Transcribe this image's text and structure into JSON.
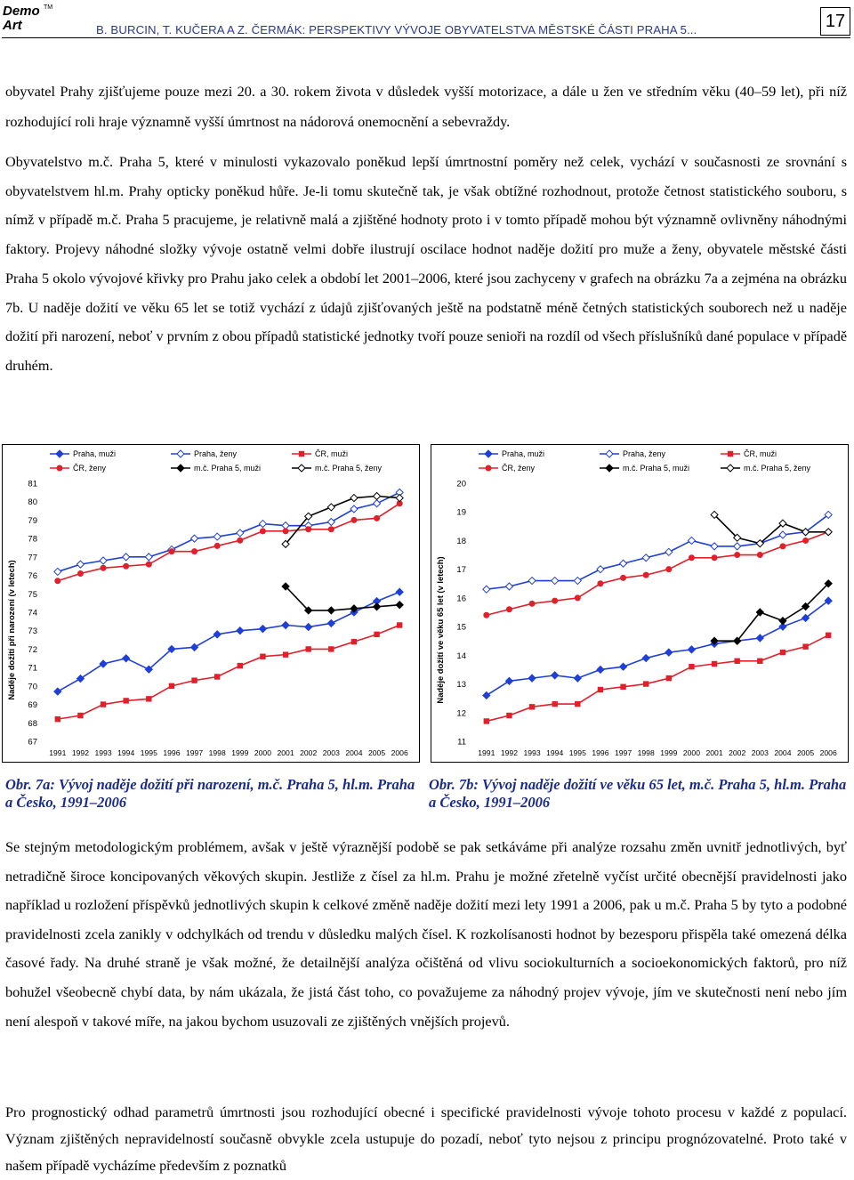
{
  "logo": {
    "text": "Demo Art",
    "mark": "TM"
  },
  "header": {
    "running_title": "B. BURCIN, T. KUČERA A Z. ČERMÁK: PERSPEKTIVY VÝVOJE OBYVATELSTVA MĚSTSKÉ ČÁSTI PRAHA 5...",
    "page_number": "17"
  },
  "body": {
    "para1": "obyvatel Prahy zjišťujeme pouze mezi 20. a 30. rokem života v důsledek vyšší motorizace, a dále u žen ve středním věku (40–59 let), při níž rozhodující roli hraje významně vyšší úmrtnost na nádorová onemocnění a sebevraždy.",
    "para2": "Obyvatelstvo m.č. Praha 5, které v minulosti vykazovalo poněkud lepší úmrtnostní poměry než celek, vychází v současnosti ze srovnání s obyvatelstvem hl.m. Prahy opticky poněkud hůře. Je-li tomu skutečně tak, je však obtížné rozhodnout, protože četnost statistického souboru, s nímž v případě m.č. Praha 5 pracujeme, je relativně malá a zjištěné hodnoty proto i v tomto případě mohou být významně ovlivněny náhodnými faktory. Projevy náhodné složky vývoje ostatně velmi dobře ilustrují oscilace hodnot naděje dožití pro muže a ženy, obyvatele městské části Praha 5 okolo vývojové křivky pro Prahu jako celek a období let 2001–2006, které jsou zachyceny v grafech na obrázku 7a a zejména na obrázku 7b. U naděje dožití ve věku 65 let se totiž vychází z údajů zjišťovaných ještě na podstatně méně četných statistických souborech než u naděje dožití při narození, neboť v prvním z obou případů statistické jednotky tvoří pouze senioři na rozdíl od všech příslušníků dané populace v případě druhém.",
    "para3": "Se stejným metodologickým problémem, avšak v ještě výraznější podobě se pak setkáváme při analýze rozsahu změn uvnitř jednotlivých, byť netradičně široce koncipovaných věkových skupin. Jestliže z čísel za hl.m. Prahu je možné zřetelně vyčíst určité obecnější pravidelnosti jako například u rozložení příspěvků jednotlivých skupin k celkové změně naděje dožití mezi lety 1991 a 2006, pak u m.č. Praha 5 by tyto a podobné pravidelnosti zcela zanikly v odchylkách od trendu v důsledku malých čísel. K rozkolísanosti hodnot by bezesporu přispěla také omezená délka časové řady. Na druhé straně je však možné, že detailnější analýza očištěná od vlivu sociokulturních a socioekonomických faktorů, pro níž bohužel všeobecně chybí data, by nám ukázala, že jistá část toho, co považujeme za náhodný projev vývoje, jím ve skutečnosti není nebo jím není alespoň v takové míře, na jakou bychom usuzovali ze zjištěných vnějších projevů.",
    "para4": "Pro prognostický odhad parametrů úmrtnosti jsou rozhodující obecné i specifické pravidelnosti vývoje tohoto procesu v každé z populací. Význam zjištěných nepravidelností současně obvykle zcela ustupuje do pozadí, neboť tyto nejsou z principu prognózovatelné. Proto také v našem případě vycházíme především z poznatků"
  },
  "captions": {
    "fig7a": "Obr. 7a: Vývoj naděje dožití při narození, m.č. Praha 5, hl.m. Praha a Česko, 1991–2006",
    "fig7b": "Obr. 7b: Vývoj naděje dožití ve věku 65 let, m.č. Praha 5, hl.m. Praha a Česko, 1991–2006"
  },
  "colors": {
    "blue": "#1f3fd6",
    "red": "#e0202a",
    "black": "#000000",
    "header_text": "#2a3a8c"
  },
  "chart_data": [
    {
      "type": "line",
      "ylabel": "Naděje dožití při narození (v letech)",
      "ylim": [
        67,
        81
      ],
      "yticks": [
        67,
        68,
        69,
        70,
        71,
        72,
        73,
        74,
        75,
        76,
        77,
        78,
        79,
        80,
        81
      ],
      "x": [
        "1991",
        "1992",
        "1993",
        "1994",
        "1995",
        "1996",
        "1997",
        "1998",
        "1999",
        "2000",
        "2001",
        "2002",
        "2003",
        "2004",
        "2005",
        "2006"
      ],
      "legend_position": "top",
      "series": [
        {
          "name": "Praha, muži",
          "color": "#1f3fd6",
          "marker": "diamond-filled",
          "values": [
            69.7,
            70.4,
            71.2,
            71.5,
            70.9,
            72.0,
            72.1,
            72.8,
            73.0,
            73.1,
            73.3,
            73.2,
            73.4,
            74.0,
            74.6,
            75.1
          ]
        },
        {
          "name": "Praha, ženy",
          "color": "#1f3fd6",
          "marker": "diamond-open",
          "values": [
            76.2,
            76.6,
            76.8,
            77.0,
            77.0,
            77.4,
            78.0,
            78.1,
            78.3,
            78.8,
            78.7,
            78.7,
            78.9,
            79.6,
            79.9,
            80.5
          ]
        },
        {
          "name": "ČR, muži",
          "color": "#e0202a",
          "marker": "square-filled",
          "values": [
            68.2,
            68.4,
            69.0,
            69.2,
            69.3,
            70.0,
            70.3,
            70.5,
            71.1,
            71.6,
            71.7,
            72.0,
            72.0,
            72.4,
            72.8,
            73.3
          ]
        },
        {
          "name": "ČR, ženy",
          "color": "#e0202a",
          "marker": "circle-filled",
          "values": [
            75.7,
            76.1,
            76.4,
            76.5,
            76.6,
            77.3,
            77.3,
            77.6,
            77.9,
            78.4,
            78.4,
            78.5,
            78.5,
            79.0,
            79.1,
            79.9
          ]
        },
        {
          "name": "m.č. Praha 5, muži",
          "color": "#000000",
          "marker": "diamond-filled",
          "values": [
            null,
            null,
            null,
            null,
            null,
            null,
            null,
            null,
            null,
            null,
            75.4,
            74.1,
            74.1,
            74.2,
            74.3,
            74.4
          ]
        },
        {
          "name": "m.č. Praha 5, ženy",
          "color": "#000000",
          "marker": "diamond-open",
          "values": [
            null,
            null,
            null,
            null,
            null,
            null,
            null,
            null,
            null,
            null,
            77.7,
            79.2,
            79.7,
            80.2,
            80.3,
            80.2
          ]
        }
      ]
    },
    {
      "type": "line",
      "ylabel": "Naděje dožití ve věku 65 let (v letech)",
      "ylim": [
        11,
        20
      ],
      "yticks": [
        11,
        12,
        13,
        14,
        15,
        16,
        17,
        18,
        19,
        20
      ],
      "x": [
        "1991",
        "1992",
        "1993",
        "1994",
        "1995",
        "1996",
        "1997",
        "1998",
        "1999",
        "2000",
        "2001",
        "2002",
        "2003",
        "2004",
        "2005",
        "2006"
      ],
      "legend_position": "top",
      "series": [
        {
          "name": "Praha, muži",
          "color": "#1f3fd6",
          "marker": "diamond-filled",
          "values": [
            12.6,
            13.1,
            13.2,
            13.3,
            13.2,
            13.5,
            13.6,
            13.9,
            14.1,
            14.2,
            14.4,
            14.5,
            14.6,
            15.0,
            15.3,
            15.9
          ]
        },
        {
          "name": "Praha, ženy",
          "color": "#1f3fd6",
          "marker": "diamond-open",
          "values": [
            16.3,
            16.4,
            16.6,
            16.6,
            16.6,
            17.0,
            17.2,
            17.4,
            17.6,
            18.0,
            17.8,
            17.8,
            17.9,
            18.2,
            18.3,
            18.9
          ]
        },
        {
          "name": "ČR, muži",
          "color": "#e0202a",
          "marker": "square-filled",
          "values": [
            11.7,
            11.9,
            12.2,
            12.3,
            12.3,
            12.8,
            12.9,
            13.0,
            13.2,
            13.6,
            13.7,
            13.8,
            13.8,
            14.1,
            14.3,
            14.7
          ]
        },
        {
          "name": "ČR, ženy",
          "color": "#e0202a",
          "marker": "circle-filled",
          "values": [
            15.4,
            15.6,
            15.8,
            15.9,
            16.0,
            16.5,
            16.7,
            16.8,
            17.0,
            17.4,
            17.4,
            17.5,
            17.5,
            17.8,
            18.0,
            18.3
          ]
        },
        {
          "name": "m.č. Praha 5, muži",
          "color": "#000000",
          "marker": "diamond-filled",
          "values": [
            null,
            null,
            null,
            null,
            null,
            null,
            null,
            null,
            null,
            null,
            14.5,
            14.5,
            15.5,
            15.2,
            15.7,
            16.5
          ]
        },
        {
          "name": "m.č. Praha 5, ženy",
          "color": "#000000",
          "marker": "diamond-open",
          "values": [
            null,
            null,
            null,
            null,
            null,
            null,
            null,
            null,
            null,
            null,
            18.9,
            18.1,
            17.9,
            18.6,
            18.3,
            18.3
          ]
        }
      ]
    }
  ]
}
